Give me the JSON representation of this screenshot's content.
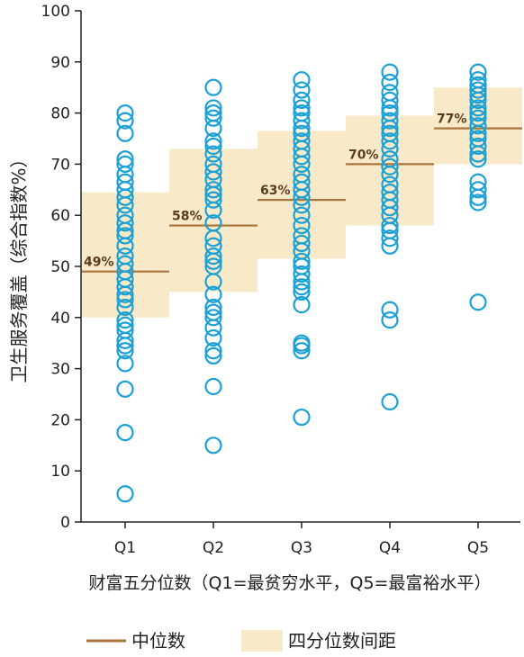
{
  "chart_data": {
    "type": "scatter",
    "ylabel": "卫生服务覆盖（综合指数%）",
    "xlabel": "财富五分位数（Q1=最贫穷水平，Q5=最富裕水平）",
    "ylim": [
      0,
      100
    ],
    "yticks": [
      0,
      10,
      20,
      30,
      40,
      50,
      60,
      70,
      80,
      90,
      100
    ],
    "categories": [
      "Q1",
      "Q2",
      "Q3",
      "Q4",
      "Q5"
    ],
    "iqr": [
      {
        "q1": 40,
        "q3": 64.5
      },
      {
        "q1": 45,
        "q3": 73
      },
      {
        "q1": 51.5,
        "q3": 76.5
      },
      {
        "q1": 58,
        "q3": 79.5
      },
      {
        "q1": 70,
        "q3": 85
      }
    ],
    "medians": [
      49,
      58,
      63,
      70,
      77
    ],
    "median_labels": [
      "49%",
      "58%",
      "63%",
      "70%",
      "77%"
    ],
    "points": [
      [
        5.5,
        17.5,
        26,
        31,
        33.5,
        34.5,
        35.5,
        37.5,
        38.5,
        39.5,
        42,
        43.5,
        44.5,
        46,
        47.5,
        49,
        50.5,
        52,
        54,
        56,
        57,
        58.5,
        60,
        62,
        63.5,
        65,
        66.5,
        68,
        70,
        71,
        76,
        78.5,
        80
      ],
      [
        15,
        26.5,
        32.5,
        33.5,
        36,
        38,
        40,
        41,
        42,
        44.5,
        47,
        50,
        51,
        52,
        54,
        55.5,
        58.5,
        61,
        63,
        64,
        65,
        67,
        68.5,
        70,
        72,
        73.5,
        74.5,
        77,
        79,
        80,
        81,
        85
      ],
      [
        20.5,
        33.5,
        34.5,
        35,
        42.5,
        45,
        46,
        47,
        48.5,
        50,
        51,
        53,
        54.5,
        56,
        58,
        60,
        62,
        63.5,
        65,
        66.5,
        68,
        70,
        71.5,
        73,
        74.5,
        76,
        77,
        78.5,
        80,
        81,
        82.5,
        84.5,
        86.5
      ],
      [
        23.5,
        39.5,
        41.5,
        54,
        55.5,
        57,
        58,
        60,
        61.5,
        63,
        64.5,
        66,
        68,
        69.5,
        71,
        73,
        74.5,
        76,
        77,
        78.5,
        80,
        81,
        82.5,
        84,
        86,
        88
      ],
      [
        43,
        62.5,
        63.5,
        65,
        66.5,
        71,
        72,
        73.5,
        75,
        76,
        77.5,
        79,
        80,
        81,
        82.5,
        83.5,
        84.5,
        85.5,
        86.5,
        88
      ]
    ],
    "legend": {
      "median": "中位数",
      "iqr": "四分位数间距"
    },
    "colors": {
      "point": "#1ba0d6",
      "median": "#a9753c",
      "iqr": "#f8e9c8",
      "axis": "#222222"
    }
  }
}
